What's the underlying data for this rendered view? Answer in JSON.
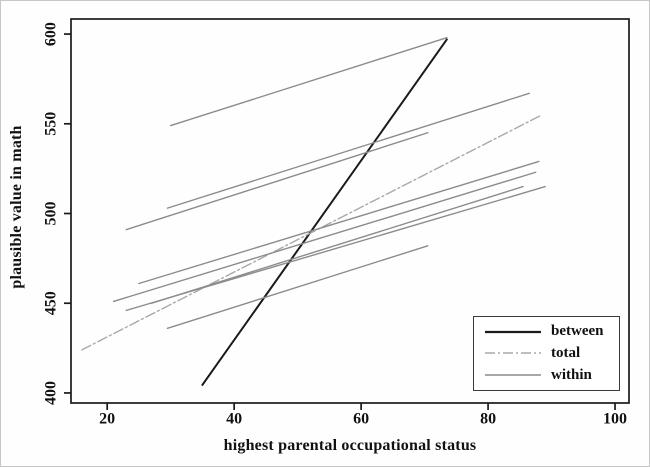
{
  "figure": {
    "x_axis": {
      "label": "highest parental occupational status",
      "ticks": [
        20,
        40,
        60,
        80,
        100
      ]
    },
    "y_axis": {
      "label": "plausible value in math",
      "ticks": [
        400,
        450,
        500,
        550,
        600
      ]
    },
    "frame_color": "#1a1a1a",
    "legend": [
      {
        "label": "between",
        "color": "#1a1a1a",
        "style": "solid",
        "width": 2.2
      },
      {
        "label": "total",
        "color": "#a9a9a9",
        "style": "dashdot",
        "width": 1.4
      },
      {
        "label": "within",
        "color": "#8c8c8c",
        "style": "solid",
        "width": 1.4
      }
    ]
  },
  "chart_data": {
    "type": "line",
    "title": "",
    "xlabel": "highest parental occupational status",
    "ylabel": "plausible value in math",
    "xlim": [
      14.3,
      102.2
    ],
    "ylim": [
      394.4,
      608.4
    ],
    "x_ticks": [
      20,
      40,
      60,
      80,
      100
    ],
    "y_ticks": [
      400,
      450,
      500,
      550,
      600
    ],
    "grid": false,
    "legend_position": "lower right",
    "series": [
      {
        "name": "between",
        "role": "between",
        "color": "#1a1a1a",
        "width": 2.0,
        "style": "solid",
        "points": [
          [
            35,
            404.5
          ],
          [
            73.5,
            597
          ]
        ]
      },
      {
        "name": "total",
        "role": "total",
        "color": "#a9a9a9",
        "width": 1.4,
        "style": "dashdot",
        "points": [
          [
            16,
            424
          ],
          [
            88.5,
            555
          ]
        ]
      },
      {
        "name": "within-1",
        "role": "within",
        "color": "#8c8c8c",
        "width": 1.4,
        "style": "solid",
        "points": [
          [
            30,
            549
          ],
          [
            73.5,
            598
          ]
        ]
      },
      {
        "name": "within-2",
        "role": "within",
        "color": "#8c8c8c",
        "width": 1.4,
        "style": "solid",
        "points": [
          [
            29.5,
            503
          ],
          [
            86.5,
            567
          ]
        ]
      },
      {
        "name": "within-3",
        "role": "within",
        "color": "#8c8c8c",
        "width": 1.4,
        "style": "solid",
        "points": [
          [
            23,
            491
          ],
          [
            70.5,
            545
          ]
        ]
      },
      {
        "name": "within-4",
        "role": "within",
        "color": "#8c8c8c",
        "width": 1.4,
        "style": "solid",
        "points": [
          [
            25,
            461
          ],
          [
            88,
            529
          ]
        ]
      },
      {
        "name": "within-5",
        "role": "within",
        "color": "#8c8c8c",
        "width": 1.4,
        "style": "solid",
        "points": [
          [
            21,
            451
          ],
          [
            87.5,
            523
          ]
        ]
      },
      {
        "name": "within-6",
        "role": "within",
        "color": "#8c8c8c",
        "width": 1.4,
        "style": "solid",
        "points": [
          [
            23,
            446
          ],
          [
            89,
            515
          ]
        ]
      },
      {
        "name": "within-7",
        "role": "within",
        "color": "#8c8c8c",
        "width": 1.4,
        "style": "solid",
        "points": [
          [
            27,
            450
          ],
          [
            85.5,
            515
          ]
        ]
      },
      {
        "name": "within-8",
        "role": "within",
        "color": "#8c8c8c",
        "width": 1.4,
        "style": "solid",
        "points": [
          [
            29.5,
            436
          ],
          [
            70.5,
            482
          ]
        ]
      }
    ]
  }
}
